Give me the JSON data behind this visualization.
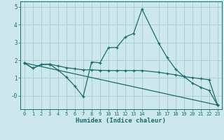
{
  "title": "",
  "xlabel": "Humidex (Indice chaleur)",
  "bg_color": "#cce8ec",
  "grid_color": "#aacdd4",
  "line_color": "#1a6b6b",
  "xlim": [
    -0.5,
    23.5
  ],
  "ylim": [
    -0.75,
    5.3
  ],
  "yticks": [
    0,
    1,
    2,
    3,
    4,
    5
  ],
  "ytick_labels": [
    "-0",
    "1",
    "2",
    "3",
    "4",
    "5"
  ],
  "xticks": [
    0,
    1,
    2,
    3,
    4,
    5,
    6,
    7,
    8,
    9,
    10,
    11,
    12,
    13,
    14,
    16,
    17,
    18,
    19,
    20,
    21,
    22,
    23
  ],
  "series": [
    {
      "x": [
        0,
        1,
        2,
        3,
        4,
        5,
        6,
        7,
        8,
        9,
        10,
        11,
        12,
        13,
        14,
        16,
        17,
        18,
        19,
        20,
        21,
        22,
        23
      ],
      "y": [
        1.85,
        1.55,
        1.75,
        1.78,
        1.45,
        1.05,
        0.55,
        -0.05,
        1.9,
        1.85,
        2.7,
        2.72,
        3.3,
        3.5,
        4.87,
        2.95,
        2.15,
        1.5,
        1.08,
        0.72,
        0.48,
        0.3,
        -0.52
      ]
    },
    {
      "x": [
        0,
        1,
        2,
        3,
        4,
        5,
        6,
        7,
        8,
        9,
        10,
        11,
        12,
        13,
        14,
        16,
        17,
        18,
        19,
        20,
        21,
        22,
        23
      ],
      "y": [
        1.85,
        1.55,
        1.75,
        1.78,
        1.68,
        1.58,
        1.52,
        1.46,
        1.46,
        1.43,
        1.42,
        1.42,
        1.42,
        1.42,
        1.42,
        1.32,
        1.25,
        1.18,
        1.08,
        1.02,
        0.96,
        0.9,
        -0.52
      ]
    },
    {
      "x": [
        0,
        23
      ],
      "y": [
        1.85,
        -0.52
      ]
    }
  ]
}
